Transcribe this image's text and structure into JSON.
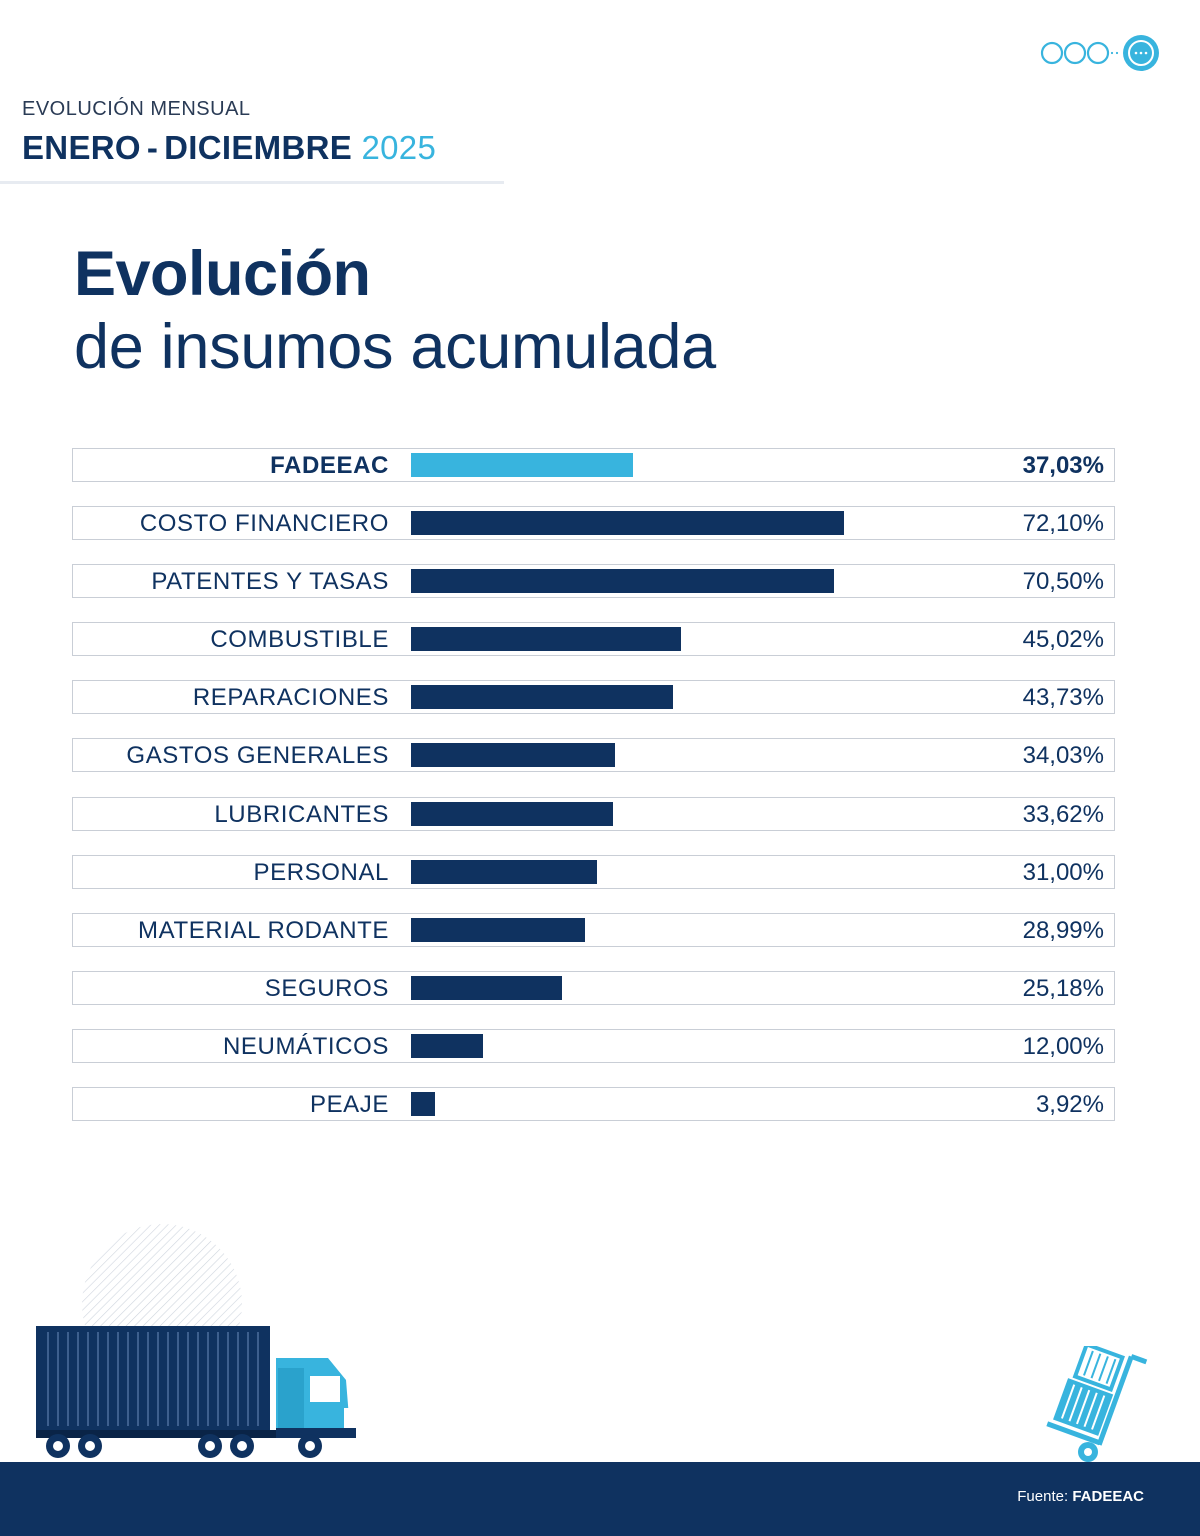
{
  "header": {
    "kicker": "EVOLUCIÓN MENSUAL",
    "period_start": "ENERO",
    "period_end": "DICIEMBRE",
    "year": "2025"
  },
  "title": {
    "line1": "Evolución",
    "line2": "de insumos acumulada"
  },
  "colors": {
    "navy": "#0f3260",
    "accent": "#38b4de"
  },
  "chart_data": {
    "type": "bar",
    "orientation": "horizontal",
    "title": "Evolución de insumos acumulada",
    "xlim": [
      0,
      100
    ],
    "categories": [
      "FADEEAC",
      "COSTO FINANCIERO",
      "PATENTES Y TASAS",
      "COMBUSTIBLE",
      "REPARACIONES",
      "GASTOS GENERALES",
      "LUBRICANTES",
      "PERSONAL",
      "MATERIAL RODANTE",
      "SEGUROS",
      "NEUMÁTICOS",
      "PEAJE"
    ],
    "values": [
      37.03,
      72.1,
      70.5,
      45.02,
      43.73,
      34.03,
      33.62,
      31.0,
      28.99,
      25.18,
      12.0,
      3.92
    ],
    "value_labels": [
      "37,03%",
      "72,10%",
      "70,50%",
      "45,02%",
      "43,73%",
      "34,03%",
      "33,62%",
      "31,00%",
      "28,99%",
      "25,18%",
      "12,00%",
      "3,92%"
    ],
    "highlight_category": "FADEEAC"
  },
  "footer": {
    "source_label": "Fuente:",
    "source_name": "FADEEAC"
  },
  "icons": [
    "brand-logo-icon",
    "truck-illustration",
    "hand-truck-illustration"
  ]
}
